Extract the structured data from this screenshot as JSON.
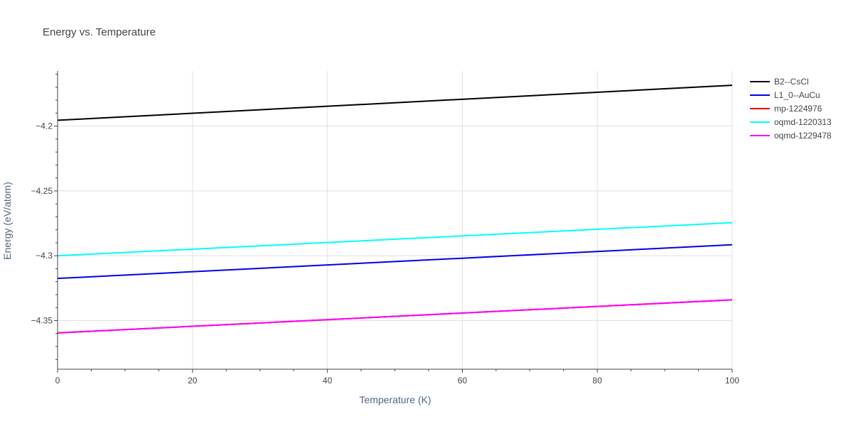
{
  "chart_data": {
    "type": "line",
    "title": "Energy vs. Temperature",
    "xlabel": "Temperature (K)",
    "ylabel": "Energy (eV/atom)",
    "xlim": [
      0,
      100
    ],
    "ylim": [
      -4.3875,
      -4.1575
    ],
    "x_ticks": [
      0,
      20,
      40,
      60,
      80,
      100
    ],
    "x_tick_labels": [
      "0",
      "20",
      "40",
      "60",
      "80",
      "100"
    ],
    "y_ticks": [
      -4.2,
      -4.25,
      -4.3,
      -4.35
    ],
    "y_tick_labels": [
      "−4.2",
      "−4.25",
      "−4.3",
      "−4.35"
    ],
    "grid": true,
    "legend_position": "right",
    "series": [
      {
        "name": "B2--CsCl",
        "color": "#000000",
        "x": [
          0,
          100
        ],
        "y": [
          -4.1955,
          -4.1685
        ]
      },
      {
        "name": "L1_0--AuCu",
        "color": "#0000ee",
        "x": [
          0,
          100
        ],
        "y": [
          -4.3175,
          -4.2915
        ]
      },
      {
        "name": "mp-1224976",
        "color": "#ee0000",
        "x": [
          0,
          100
        ],
        "y": [
          -4.3595,
          -4.334
        ]
      },
      {
        "name": "oqmd-1220313",
        "color": "#00ffff",
        "x": [
          0,
          100
        ],
        "y": [
          -4.3,
          -4.2745
        ]
      },
      {
        "name": "oqmd-1229478",
        "color": "#ff00ff",
        "x": [
          0,
          100
        ],
        "y": [
          -4.3595,
          -4.334
        ]
      }
    ]
  }
}
